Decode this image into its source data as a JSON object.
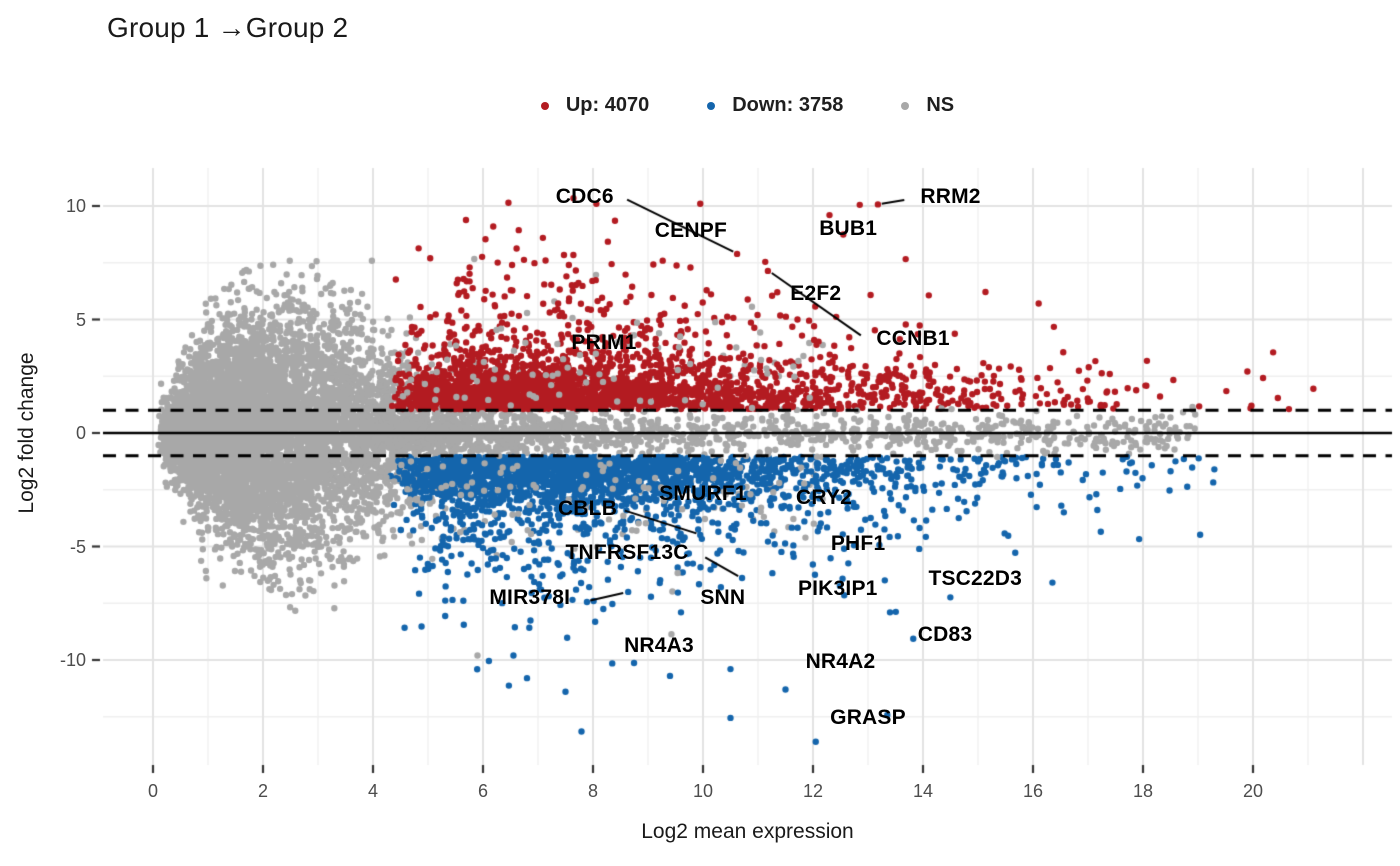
{
  "title": "Group 1 →Group 2",
  "legend": {
    "items": [
      {
        "name": "up",
        "label": "Up: 4070",
        "color": "#B31B21"
      },
      {
        "name": "down",
        "label": "Down: 3758",
        "color": "#1465AC"
      },
      {
        "name": "ns",
        "label": "NS",
        "color": "#A8A8A8"
      }
    ]
  },
  "chart_data": {
    "type": "scatter",
    "title": "Group 1 →Group 2",
    "xlabel": "Log2 mean expression",
    "ylabel": "Log2 fold change",
    "x_ticks": [
      0,
      2,
      4,
      6,
      8,
      10,
      12,
      14,
      16,
      18,
      20
    ],
    "y_ticks": [
      10,
      5,
      0,
      -5,
      -10
    ],
    "xlim": [
      -0.9,
      22.5
    ],
    "ylim": [
      -14.6,
      11.7
    ],
    "grid": true,
    "legend_position": "top",
    "hlines": {
      "solid": [
        0
      ],
      "dashed": [
        1,
        -1
      ]
    },
    "counts": {
      "up": 4070,
      "down": 3758
    },
    "colors": {
      "up": "#B31B21",
      "down": "#1465AC",
      "ns": "#A8A8A8",
      "grid_major": "#E3E3E3",
      "grid_minor": "#EFEFEF",
      "axis_tick": "#333333",
      "tick_label": "#4d4d4d",
      "line": "#000000"
    },
    "labeled_genes": [
      {
        "name": "CDC6",
        "group": "up",
        "label_x": 7.85,
        "label_y": 10.4,
        "point_x": 10.62,
        "point_y": 7.89,
        "leader": [
          8.62,
          10.28,
          10.55,
          7.99
        ]
      },
      {
        "name": "RRM2",
        "group": "up",
        "label_x": 14.5,
        "label_y": 10.4,
        "point_x": 13.18,
        "point_y": 10.07,
        "leader": [
          13.66,
          10.26,
          13.25,
          10.1
        ]
      },
      {
        "name": "CENPF",
        "group": "up",
        "label_x": 9.78,
        "label_y": 8.9
      },
      {
        "name": "BUB1",
        "group": "up",
        "label_x": 12.64,
        "label_y": 9.0,
        "point_x": 12.85,
        "point_y": 10.05
      },
      {
        "name": "E2F2",
        "group": "up",
        "label_x": 12.05,
        "label_y": 6.12
      },
      {
        "name": "CCNB1",
        "group": "up",
        "label_x": 13.82,
        "label_y": 4.14,
        "point_x": 11.18,
        "point_y": 7.14,
        "leader": [
          12.87,
          4.3,
          11.25,
          7.05
        ]
      },
      {
        "name": "PRIM1",
        "group": "up",
        "label_x": 8.2,
        "label_y": 3.95
      },
      {
        "name": "SMURF1",
        "group": "down",
        "label_x": 10.0,
        "label_y": -2.69
      },
      {
        "name": "CRY2",
        "group": "down",
        "label_x": 12.2,
        "label_y": -2.86
      },
      {
        "name": "CBLB",
        "group": "down",
        "label_x": 7.9,
        "label_y": -3.35,
        "point_x": 9.95,
        "point_y": -4.49,
        "leader": [
          8.58,
          -3.42,
          9.88,
          -4.42
        ]
      },
      {
        "name": "PHF1",
        "group": "down",
        "label_x": 12.82,
        "label_y": -4.89
      },
      {
        "name": "TNFRSF13C",
        "group": "down",
        "label_x": 8.62,
        "label_y": -5.29,
        "point_x": 10.71,
        "point_y": -6.39,
        "leader": [
          10.04,
          -5.48,
          10.64,
          -6.3
        ]
      },
      {
        "name": "TSC22D3",
        "group": "down",
        "label_x": 14.95,
        "label_y": -6.43
      },
      {
        "name": "PIK3IP1",
        "group": "down",
        "label_x": 12.45,
        "label_y": -6.87
      },
      {
        "name": "SNN",
        "group": "down",
        "label_x": 10.36,
        "label_y": -7.27,
        "point_x": 9.6,
        "point_y": -7.9
      },
      {
        "name": "MIR378I",
        "group": "down",
        "label_x": 6.85,
        "label_y": -7.27,
        "point_x": 8.64,
        "point_y": -7.0,
        "leader": [
          7.95,
          -7.38,
          8.55,
          -7.05
        ]
      },
      {
        "name": "NR4A3",
        "group": "down",
        "label_x": 9.2,
        "label_y": -9.4
      },
      {
        "name": "CD83",
        "group": "down",
        "label_x": 14.4,
        "label_y": -8.9
      },
      {
        "name": "NR4A2",
        "group": "down",
        "label_x": 12.5,
        "label_y": -10.1
      },
      {
        "name": "GRASP",
        "group": "down",
        "label_x": 13.0,
        "label_y": -12.55,
        "point_x": 12.05,
        "point_y": -13.6
      }
    ],
    "extra_points": {
      "up": [
        [
          9.95,
          10.1
        ],
        [
          8.4,
          9.35
        ],
        [
          12.3,
          9.6
        ]
      ],
      "down": [
        [
          10.5,
          -10.4
        ],
        [
          10.5,
          -12.55
        ],
        [
          9.4,
          -10.7
        ],
        [
          6.8,
          -10.8
        ],
        [
          7.5,
          -11.4
        ],
        [
          11.5,
          -11.3
        ],
        [
          8.35,
          -10.15
        ],
        [
          13.4,
          -7.9
        ]
      ],
      "ns": [
        [
          5.9,
          -9.8
        ],
        [
          18.9,
          1.15
        ]
      ]
    },
    "cloud": {
      "seed": 42,
      "dot_radius": 3.2,
      "blob_n": 6800,
      "band_n": 1100,
      "mixed_n": 350,
      "up_n": 2600,
      "down_n": 2500
    }
  }
}
